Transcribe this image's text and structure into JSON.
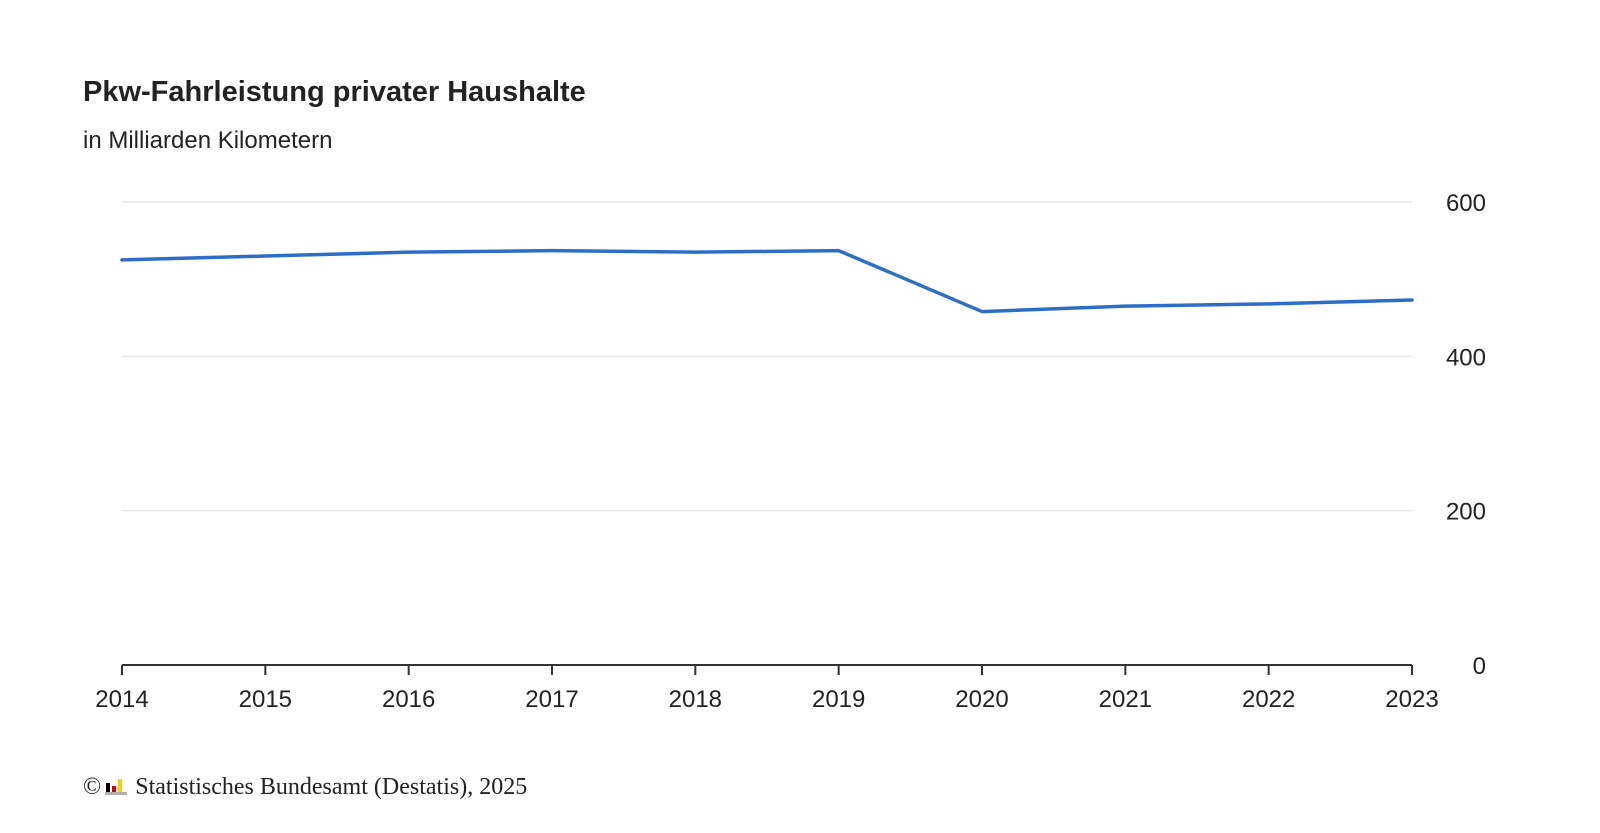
{
  "colors": {
    "line": "#2e6ec7",
    "grid": "#e3e3e3",
    "axis": "#333333",
    "text": "#222222",
    "logo_black": "#000000",
    "logo_red": "#dd0000",
    "logo_gold": "#ffcc00",
    "logo_grey": "#b0b0b0"
  },
  "chart_data": {
    "type": "line",
    "title": "Pkw-Fahrleistung privater Haushalte",
    "subtitle": "in Milliarden Kilometern",
    "xlabel": "",
    "ylabel": "",
    "x": [
      "2014",
      "2015",
      "2016",
      "2017",
      "2018",
      "2019",
      "2020",
      "2021",
      "2022",
      "2023"
    ],
    "series": [
      {
        "values": [
          525,
          530,
          535,
          537,
          535,
          537,
          458,
          465,
          468,
          473
        ]
      }
    ],
    "ylim": [
      0,
      600
    ],
    "yticks": [
      "0",
      "200",
      "400",
      "600"
    ],
    "y_axis_side": "right",
    "grid": true,
    "legend": "none"
  },
  "footer": {
    "copyright_symbol": "©",
    "logo_icon": "destatis-logo-icon",
    "source_text": "Statistisches Bundesamt (Destatis), 2025"
  }
}
